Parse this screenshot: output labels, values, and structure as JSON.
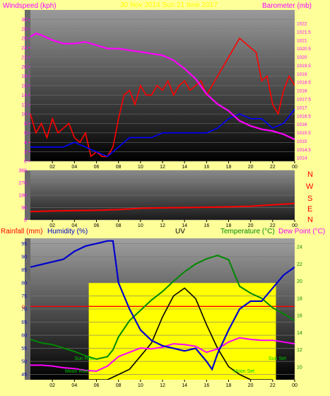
{
  "header": {
    "left_label": "Windspeed (kph)",
    "center_label": "30 Nov 2014 Sun 21 time 2017",
    "right_label": "Barometer (mb)"
  },
  "compass": [
    "N",
    "W",
    "S",
    "E",
    "N"
  ],
  "bottom_header": {
    "rain_label": "Rainfall (mm)",
    "humidity_label": "Humidity (%)",
    "uv_label": "UV",
    "temp_label": "Temperature (°C)",
    "dew_label": "Dew Point (°C)"
  },
  "sun_moon_labels": {
    "sun_rise": "Sun Rise",
    "sun_set": "Sun Set",
    "moon_rise": "Moon Rise",
    "moon_set": "Moon Set"
  },
  "colors": {
    "windspeed": "#ff0000",
    "wind_avg": "#0000ff",
    "barometer": "#ff00ff",
    "direction": "#ff0000",
    "humidity": "#0000cc",
    "temperature": "#008800",
    "dewpoint": "#ff00ff",
    "uv": "#000000",
    "solar": "#ffff00",
    "rain": "#ff0000"
  },
  "chart_data": [
    {
      "type": "line",
      "title": "",
      "xlabel": "",
      "ylabel": "Windspeed (kph)",
      "y2label": "Barometer (mb)",
      "x_ticks": [
        "02",
        "04",
        "06",
        "08",
        "10",
        "12",
        "14",
        "16",
        "18",
        "20",
        "22",
        "00"
      ],
      "xlim": [
        0,
        24
      ],
      "ylim": [
        0,
        32
      ],
      "y_ticks": [
        "0",
        "2",
        "4",
        "6",
        "8",
        "10",
        "12",
        "14",
        "16",
        "18",
        "20",
        "22",
        "24",
        "26",
        "28",
        "30"
      ],
      "y2lim": [
        1013.8,
        1022.8
      ],
      "y2_ticks": [
        "1014",
        "1014.5",
        "1015",
        "1015.5",
        "1016",
        "1016.5",
        "1017",
        "1017.5",
        "1018",
        "1018.5",
        "1019",
        "1019.5",
        "1020",
        "1020.5",
        "1021",
        "1021.5",
        "1022"
      ],
      "grid": true,
      "series": [
        {
          "name": "Windspeed (kph)",
          "axis": "left",
          "x": [
            0,
            0.5,
            1,
            1.5,
            2,
            2.5,
            3,
            3.5,
            4,
            4.5,
            5,
            5.5,
            6,
            6.5,
            7,
            7.5,
            8,
            8.5,
            9,
            9.5,
            10,
            10.5,
            11,
            11.5,
            12,
            12.5,
            13,
            13.5,
            14,
            14.5,
            15,
            15.5,
            16,
            16.5,
            17,
            17.5,
            18,
            18.5,
            19,
            19.5,
            20,
            20.5,
            21,
            21.5,
            22,
            22.5,
            23,
            23.5,
            24
          ],
          "values": [
            10,
            6,
            8,
            5,
            9,
            6,
            7,
            8,
            5,
            4,
            6,
            1,
            2,
            1,
            1,
            3,
            9,
            14,
            15,
            12,
            16,
            14,
            14,
            16,
            15,
            17,
            14,
            16,
            17,
            15,
            16,
            17,
            14,
            16,
            18,
            20,
            22,
            24,
            26,
            25,
            24,
            23,
            17,
            18,
            12,
            10,
            15,
            18,
            16
          ]
        },
        {
          "name": "Average windspeed (kph)",
          "axis": "left",
          "x": [
            0,
            1,
            2,
            3,
            4,
            5,
            6,
            7,
            8,
            9,
            10,
            11,
            12,
            13,
            14,
            15,
            16,
            17,
            18,
            19,
            20,
            21,
            22,
            23,
            24
          ],
          "values": [
            3,
            3,
            3,
            3,
            4,
            3,
            2,
            1,
            3,
            5,
            5,
            5,
            6,
            6,
            6,
            6,
            6,
            7,
            9,
            10,
            9,
            9,
            7,
            8,
            11
          ]
        },
        {
          "name": "Barometer (mb)",
          "axis": "right",
          "x": [
            0,
            0.5,
            1,
            2,
            3,
            4,
            5,
            6,
            7,
            8,
            9,
            10,
            11,
            12,
            13,
            14,
            15,
            16,
            17,
            18,
            19,
            20,
            21,
            22,
            23,
            24
          ],
          "values": [
            1021.2,
            1021.4,
            1021.3,
            1021.0,
            1020.8,
            1020.8,
            1020.9,
            1020.7,
            1020.5,
            1020.5,
            1020.4,
            1020.3,
            1020.2,
            1020.1,
            1019.8,
            1019.3,
            1018.7,
            1017.8,
            1017.2,
            1016.8,
            1016.2,
            1015.9,
            1015.7,
            1015.6,
            1015.4,
            1015.1
          ]
        }
      ]
    },
    {
      "type": "line",
      "title": "",
      "ylabel": "",
      "x_ticks": [
        "02",
        "04",
        "06",
        "08",
        "10",
        "12",
        "14",
        "16",
        "18",
        "20",
        "22",
        "00"
      ],
      "xlim": [
        0,
        24
      ],
      "ylim": [
        0,
        360
      ],
      "y_ticks": [
        "0",
        "90",
        "180",
        "270",
        "360"
      ],
      "grid": true,
      "series": [
        {
          "name": "Wind direction",
          "x": [
            0,
            2,
            4,
            6,
            8,
            10,
            12,
            14,
            16,
            18,
            20,
            22,
            24
          ],
          "values": [
            60,
            65,
            68,
            70,
            75,
            85,
            88,
            90,
            92,
            95,
            100,
            110,
            120
          ]
        }
      ]
    },
    {
      "type": "line",
      "title": "",
      "xlabel": "",
      "x_ticks": [
        "02",
        "04",
        "06",
        "08",
        "10",
        "12",
        "14",
        "16",
        "18",
        "20",
        "22",
        "00"
      ],
      "xlim": [
        0,
        24
      ],
      "ylim": [
        43,
        97
      ],
      "y_ticks": [
        "45",
        "50",
        "55",
        "60",
        "65",
        "70",
        "75",
        "80",
        "85",
        "90",
        "95"
      ],
      "y2lim": [
        8.5,
        25
      ],
      "y2_ticks": [
        "10",
        "12",
        "14",
        "16",
        "18",
        "20",
        "22",
        "24"
      ],
      "rain_axis_label": "0",
      "rain_axis_value": 71,
      "grid": true,
      "series": [
        {
          "name": "Humidity (%)",
          "axis": "left",
          "x": [
            0,
            1,
            2,
            3,
            4,
            5,
            6,
            7,
            7.5,
            8,
            9,
            10,
            11,
            12,
            13,
            14,
            15,
            16,
            16.5,
            17,
            18,
            19,
            20,
            21,
            22,
            23,
            24
          ],
          "values": [
            86,
            87,
            88,
            89,
            92,
            94,
            95,
            96,
            96,
            80,
            70,
            62,
            58,
            56,
            55,
            54,
            55,
            50,
            47,
            53,
            62,
            70,
            73,
            73,
            78,
            83,
            86
          ]
        },
        {
          "name": "Temperature (°C)",
          "axis": "right",
          "x": [
            0,
            1,
            2,
            3,
            4,
            5,
            6,
            7,
            7.5,
            8,
            9,
            10,
            11,
            12,
            13,
            14,
            15,
            16,
            17,
            18,
            19,
            20,
            21,
            22,
            23,
            24
          ],
          "values": [
            13.2,
            12.8,
            12.6,
            12.2,
            11.8,
            11.3,
            10.9,
            11.2,
            12,
            13.5,
            15.4,
            16.6,
            17.8,
            18.8,
            20,
            21.1,
            22,
            22.6,
            23,
            22.5,
            19.4,
            18.6,
            18,
            16.9,
            16.2,
            15.4
          ]
        },
        {
          "name": "Dew Point (°C)",
          "axis": "right",
          "x": [
            0,
            1,
            2,
            3,
            4,
            5,
            6,
            7,
            8,
            9,
            10,
            11,
            12,
            13,
            14,
            15,
            16,
            17,
            18,
            19,
            20,
            21,
            22,
            23,
            24
          ],
          "values": [
            10.2,
            10.2,
            10.1,
            9.9,
            9.8,
            9.6,
            9.5,
            10.1,
            11.2,
            11.7,
            12.2,
            12.1,
            12.3,
            12.7,
            12.6,
            12.4,
            11.7,
            12.1,
            12.9,
            13.4,
            13.2,
            13.1,
            13.1,
            12.9,
            12.7
          ]
        },
        {
          "name": "UV",
          "axis": "left",
          "x": [
            5,
            6,
            7,
            8,
            9,
            10,
            11,
            12,
            13,
            14,
            15,
            16,
            17,
            18,
            19,
            20,
            21,
            22
          ],
          "values": [
            43,
            43,
            43,
            45,
            47,
            52,
            57,
            67,
            75,
            78,
            74,
            64,
            55,
            48,
            45,
            43,
            43,
            43
          ]
        }
      ],
      "sun_rise_hour": 5.3,
      "sun_set_hour": 22.3,
      "moon_rise_hour": 4.6,
      "moon_set_hour": 19.9
    }
  ]
}
